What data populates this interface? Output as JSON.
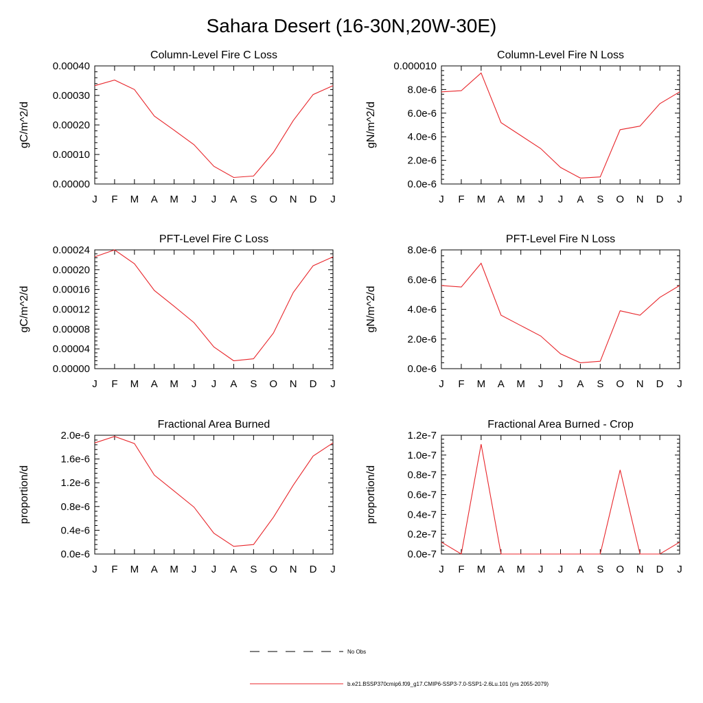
{
  "figure": {
    "title": "Sahara Desert (16-30N,20W-30E)"
  },
  "months": [
    "J",
    "F",
    "M",
    "A",
    "M",
    "J",
    "J",
    "A",
    "S",
    "O",
    "N",
    "D",
    "J"
  ],
  "colors": {
    "model": "#e8252a",
    "obs": "#000000",
    "axis": "#000000"
  },
  "chart_data": [
    {
      "type": "line",
      "title": "Column-Level Fire C Loss",
      "ylabel": "gC/m^2/d",
      "ylim": [
        0,
        0.0004
      ],
      "yticks": [
        0,
        0.0001,
        0.0002,
        0.0003,
        0.0004
      ],
      "yticklabels": [
        "0.00000",
        "0.00010",
        "0.00020",
        "0.00030",
        "0.00040"
      ],
      "series": [
        {
          "values": [
            0.000333,
            0.000352,
            0.00032,
            0.00023,
            0.000182,
            0.000133,
            6e-05,
            2.2e-05,
            2.7e-05,
            0.000107,
            0.000215,
            0.000303,
            0.000333
          ]
        }
      ]
    },
    {
      "type": "line",
      "title": "Column-Level Fire N Loss",
      "ylabel": "gN/m^2/d",
      "ylim": [
        0,
        1e-05
      ],
      "yticks": [
        0,
        2e-06,
        4e-06,
        6e-06,
        8e-06,
        1e-05
      ],
      "yticklabels": [
        "0.0e-6",
        "2.0e-6",
        "4.0e-6",
        "6.0e-6",
        "8.0e-6",
        "0.000010"
      ],
      "series": [
        {
          "values": [
            7.8e-06,
            7.9e-06,
            9.4e-06,
            5.2e-06,
            4.1e-06,
            3e-06,
            1.4e-06,
            5e-07,
            6e-07,
            4.6e-06,
            4.9e-06,
            6.8e-06,
            7.8e-06
          ]
        }
      ]
    },
    {
      "type": "line",
      "title": "PFT-Level Fire C Loss",
      "ylabel": "gC/m^2/d",
      "ylim": [
        0,
        0.00024
      ],
      "yticks": [
        0,
        4e-05,
        8e-05,
        0.00012,
        0.00016,
        0.0002,
        0.00024
      ],
      "yticklabels": [
        "0.00000",
        "0.00004",
        "0.00008",
        "0.00012",
        "0.00016",
        "0.00020",
        "0.00024"
      ],
      "series": [
        {
          "values": [
            0.000226,
            0.00024,
            0.000212,
            0.000158,
            0.000126,
            9.3e-05,
            4.4e-05,
            1.6e-05,
            2e-05,
            7.2e-05,
            0.000154,
            0.000208,
            0.000226
          ]
        }
      ]
    },
    {
      "type": "line",
      "title": "PFT-Level Fire N Loss",
      "ylabel": "gN/m^2/d",
      "ylim": [
        0,
        8e-06
      ],
      "yticks": [
        0,
        2e-06,
        4e-06,
        6e-06,
        8e-06
      ],
      "yticklabels": [
        "0.0e-6",
        "2.0e-6",
        "4.0e-6",
        "6.0e-6",
        "8.0e-6"
      ],
      "series": [
        {
          "values": [
            5.6e-06,
            5.5e-06,
            7.1e-06,
            3.6e-06,
            2.9e-06,
            2.2e-06,
            1e-06,
            4e-07,
            5e-07,
            3.9e-06,
            3.6e-06,
            4.8e-06,
            5.6e-06
          ]
        }
      ]
    },
    {
      "type": "line",
      "title": "Fractional Area Burned",
      "ylabel": "proportion/d",
      "ylim": [
        0,
        2e-06
      ],
      "yticks": [
        0,
        4e-07,
        8e-07,
        1.2e-06,
        1.6e-06,
        2e-06
      ],
      "yticklabels": [
        "0.0e-6",
        "0.4e-6",
        "0.8e-6",
        "1.2e-6",
        "1.6e-6",
        "2.0e-6"
      ],
      "series": [
        {
          "values": [
            1.87e-06,
            1.98e-06,
            1.86e-06,
            1.33e-06,
            1.06e-06,
            7.9e-07,
            3.5e-07,
            1.3e-07,
            1.6e-07,
            6.2e-07,
            1.16e-06,
            1.65e-06,
            1.87e-06
          ]
        }
      ]
    },
    {
      "type": "line",
      "title": "Fractional Area Burned - Crop",
      "ylabel": "proportion/d",
      "ylim": [
        0,
        1.2e-07
      ],
      "yticks": [
        0,
        2e-08,
        4e-08,
        6e-08,
        8e-08,
        1e-07,
        1.2e-07
      ],
      "yticklabels": [
        "0.0e-7",
        "0.2e-7",
        "0.4e-7",
        "0.6e-7",
        "0.8e-7",
        "1.0e-7",
        "1.2e-7"
      ],
      "series": [
        {
          "values": [
            1.2e-08,
            0,
            1.11e-07,
            0,
            0,
            0,
            0,
            0,
            0,
            8.5e-08,
            0,
            0,
            1.2e-08
          ]
        }
      ]
    }
  ],
  "legend": {
    "obs_label": "No Obs",
    "model_label": "b.e21.BSSP370cmip6.f09_g17.CMIP6-SSP3-7.0-SSP1-2.6Lu.101 (yrs 2055-2079)"
  }
}
